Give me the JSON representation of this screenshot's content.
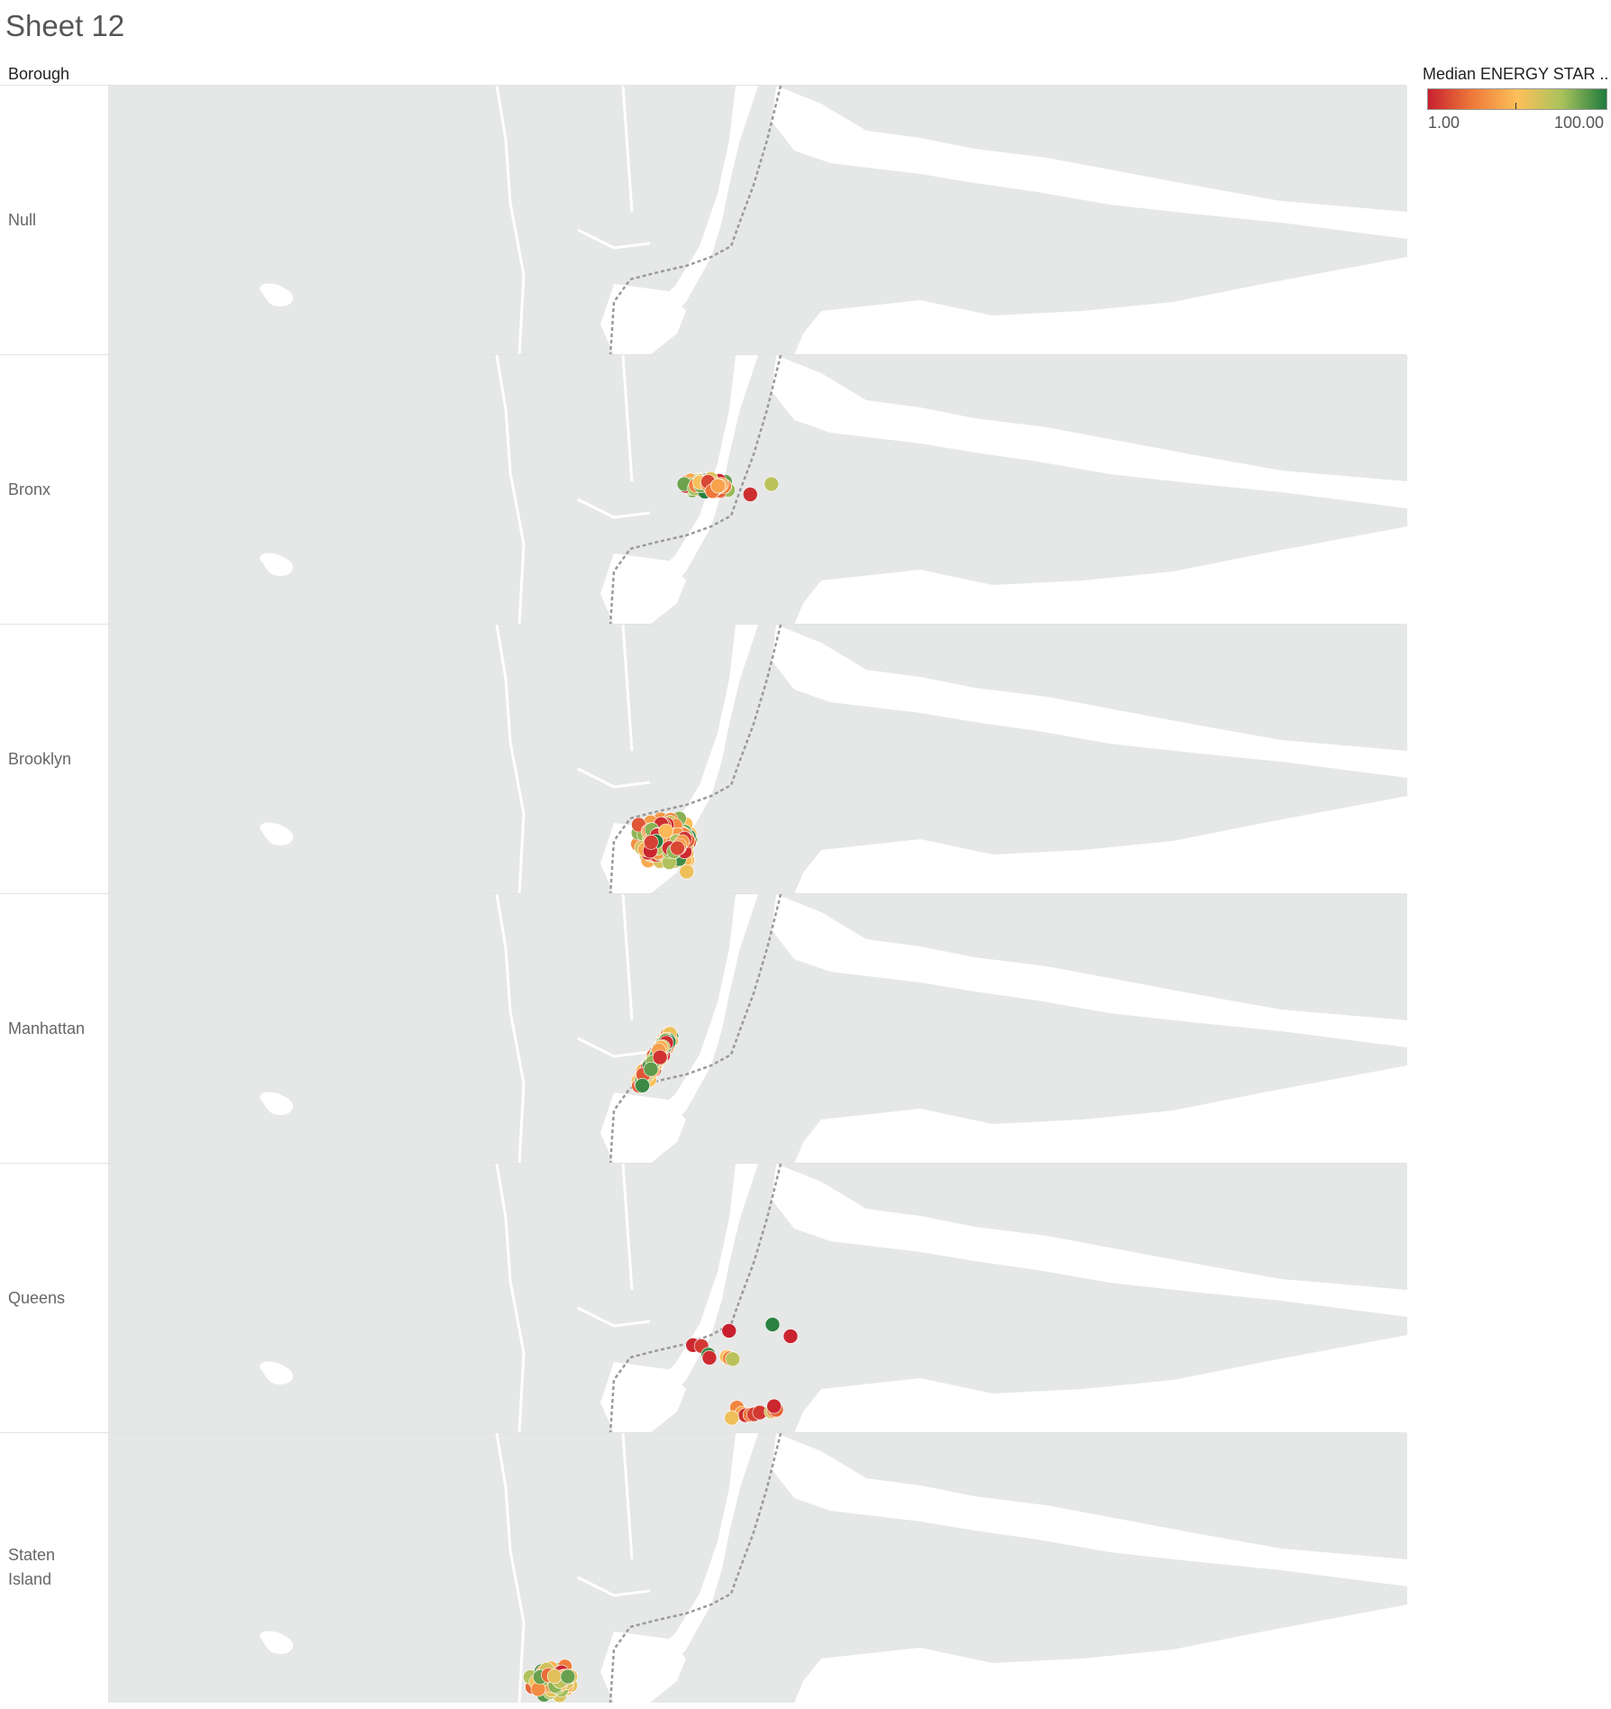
{
  "title": "Sheet 12",
  "column_header": "Borough",
  "legend": {
    "title": "Median ENERGY STAR ..",
    "min_label": "1.00",
    "max_label": "100.00",
    "colors": [
      "#c8202f",
      "#ee7a3a",
      "#fdc05a",
      "#a9c25c",
      "#1f7b3e"
    ]
  },
  "map_colors": {
    "land": "#e6e7e7",
    "water": "#ffffff",
    "state_line": "#9a9a9a"
  },
  "chart_data": {
    "type": "scatter",
    "facet": "Borough",
    "color_measure": "Median ENERGY STAR ..",
    "color_range": [
      1,
      100
    ],
    "panels": [
      {
        "label": "Null",
        "clusters": [],
        "points": []
      },
      {
        "label": "Bronx",
        "clusters": [
          {
            "lon": -73.87,
            "lat": 40.85,
            "spread_lon": 0.05,
            "spread_lat": 0.018,
            "count": 150
          }
        ],
        "points": [
          {
            "lon": -73.75,
            "lat": 40.853,
            "v": 70
          },
          {
            "lon": -73.79,
            "lat": 40.83,
            "v": 5
          }
        ]
      },
      {
        "label": "Brooklyn",
        "clusters": [
          {
            "lon": -73.95,
            "lat": 40.66,
            "spread_lon": 0.06,
            "spread_lat": 0.055,
            "count": 650
          }
        ],
        "points": [
          {
            "lon": -73.91,
            "lat": 40.59,
            "v": 55
          }
        ]
      },
      {
        "label": "Manhattan",
        "clusters": [
          {
            "lon": -73.97,
            "lat": 40.77,
            "spread_lon": 0.03,
            "spread_lat": 0.07,
            "count": 450,
            "diagonal": true
          }
        ],
        "points": []
      },
      {
        "label": "Queens",
        "clusters": [],
        "points": [
          {
            "lon": -73.83,
            "lat": 40.768,
            "v": 1
          },
          {
            "lon": -73.898,
            "lat": 40.736,
            "v": 3
          },
          {
            "lon": -73.882,
            "lat": 40.734,
            "v": 8
          },
          {
            "lon": -73.869,
            "lat": 40.715,
            "v": 95
          },
          {
            "lon": -73.867,
            "lat": 40.708,
            "v": 4
          },
          {
            "lon": -73.834,
            "lat": 40.71,
            "v": 50
          },
          {
            "lon": -73.829,
            "lat": 40.707,
            "v": 30
          },
          {
            "lon": -73.823,
            "lat": 40.705,
            "v": 70
          },
          {
            "lon": -73.748,
            "lat": 40.782,
            "v": 98
          },
          {
            "lon": -73.714,
            "lat": 40.756,
            "v": 2
          },
          {
            "lon": -73.815,
            "lat": 40.597,
            "v": 30
          },
          {
            "lon": -73.806,
            "lat": 40.584,
            "v": 40
          },
          {
            "lon": -73.799,
            "lat": 40.58,
            "v": 5
          },
          {
            "lon": -73.79,
            "lat": 40.581,
            "v": 25
          },
          {
            "lon": -73.783,
            "lat": 40.582,
            "v": 10
          },
          {
            "lon": -73.772,
            "lat": 40.586,
            "v": 8
          },
          {
            "lon": -73.75,
            "lat": 40.588,
            "v": 65
          },
          {
            "lon": -73.745,
            "lat": 40.59,
            "v": 30
          },
          {
            "lon": -73.741,
            "lat": 40.592,
            "v": 20
          },
          {
            "lon": -73.745,
            "lat": 40.6,
            "v": 3
          },
          {
            "lon": -73.825,
            "lat": 40.574,
            "v": 55
          }
        ]
      },
      {
        "label": "Staten Island",
        "clusters": [
          {
            "lon": -74.16,
            "lat": 40.59,
            "spread_lon": 0.05,
            "spread_lat": 0.035,
            "count": 90
          }
        ],
        "points": []
      }
    ]
  }
}
